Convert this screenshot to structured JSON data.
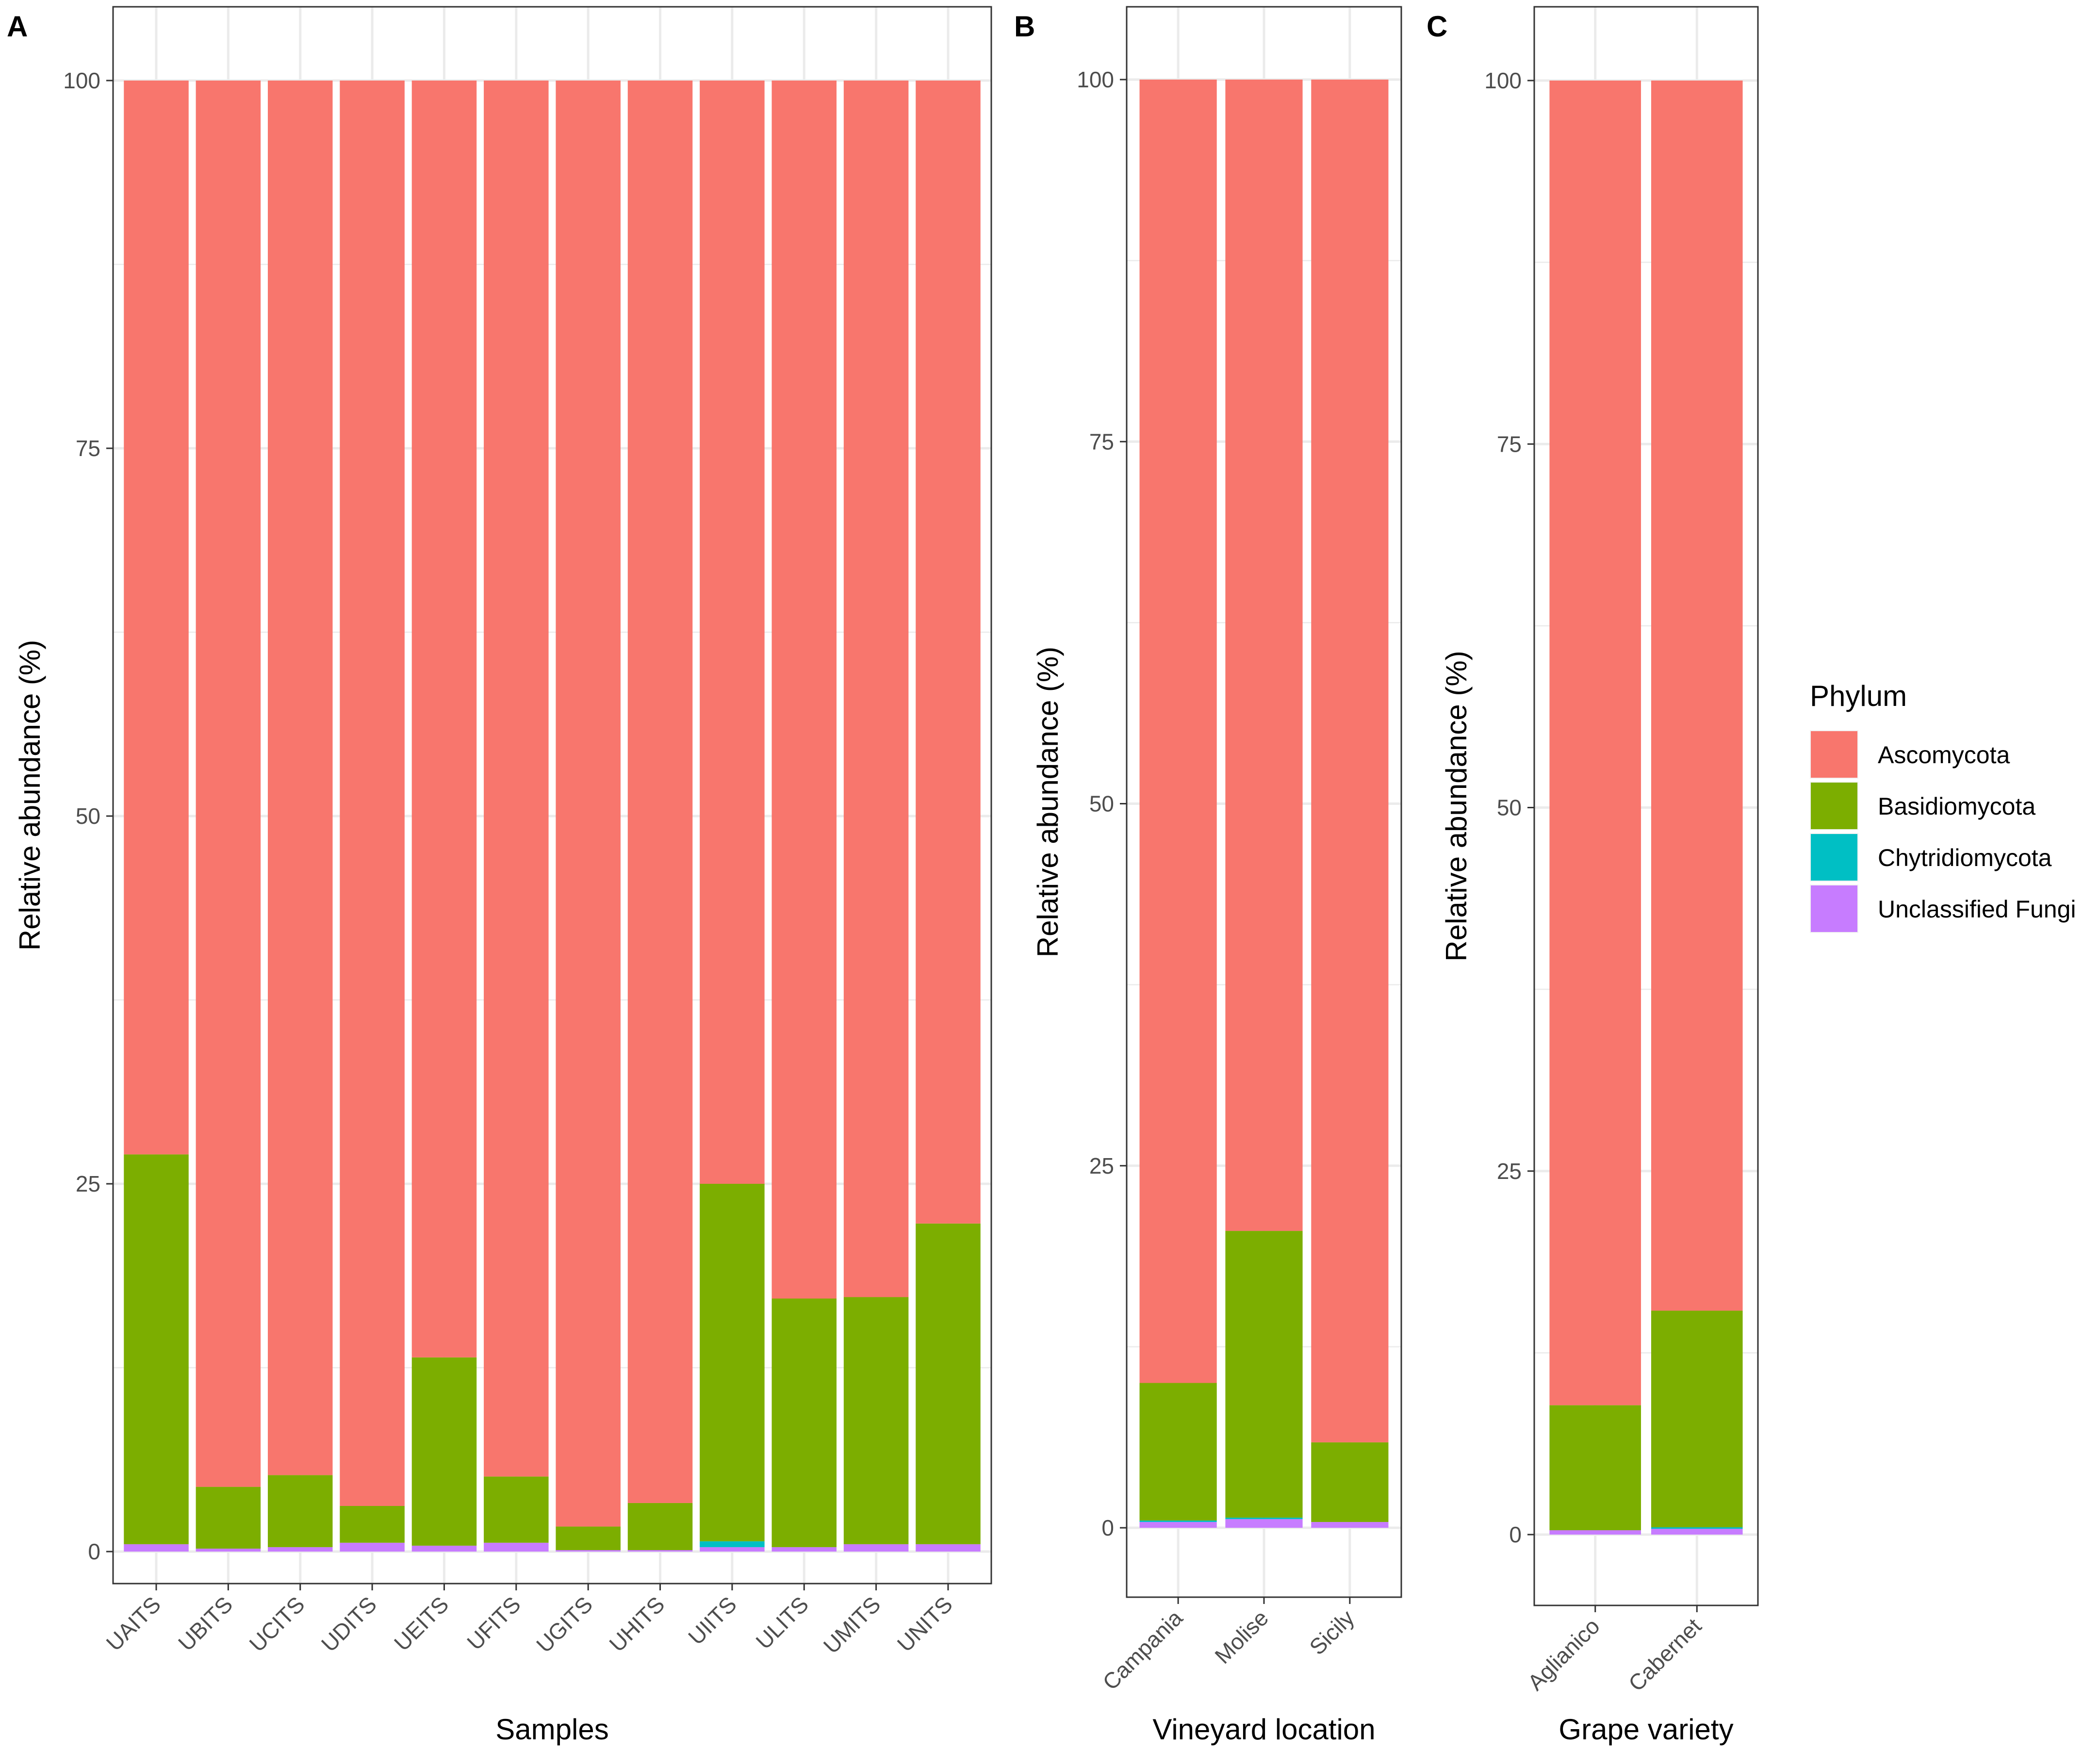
{
  "chart_data": [
    {
      "type": "bar",
      "stacked": true,
      "panel": "A",
      "xlabel": "Samples",
      "ylabel": "Relative abundance (%)",
      "ylim": [
        0,
        100
      ],
      "yticks": [
        "0",
        "25",
        "50",
        "75",
        "100"
      ],
      "grid": true,
      "categories": [
        "UAITS",
        "UBITS",
        "UCITS",
        "UDITS",
        "UEITS",
        "UFITS",
        "UGITS",
        "UHITS",
        "UIITS",
        "ULITS",
        "UMITS",
        "UNITS"
      ],
      "series": [
        {
          "name": "Unclassified Fungi",
          "values": [
            0.5,
            0.2,
            0.3,
            0.6,
            0.4,
            0.6,
            0.1,
            0.1,
            0.3,
            0.3,
            0.5,
            0.5
          ]
        },
        {
          "name": "Chytridiomycota",
          "values": [
            0,
            0,
            0,
            0,
            0,
            0,
            0,
            0,
            0.4,
            0,
            0,
            0
          ]
        },
        {
          "name": "Basidiomycota",
          "values": [
            26.5,
            4.2,
            4.9,
            2.5,
            12.8,
            4.5,
            1.6,
            3.2,
            24.3,
            16.9,
            16.8,
            21.8
          ]
        },
        {
          "name": "Ascomycota",
          "values": [
            73.0,
            95.6,
            94.8,
            96.9,
            86.8,
            94.9,
            98.3,
            96.7,
            75.0,
            82.8,
            82.7,
            77.7
          ]
        }
      ]
    },
    {
      "type": "bar",
      "stacked": true,
      "panel": "B",
      "xlabel": "Vineyard location",
      "ylabel": "Relative abundance (%)",
      "ylim": [
        0,
        100
      ],
      "yticks": [
        "0",
        "25",
        "50",
        "75",
        "100"
      ],
      "grid": true,
      "categories": [
        "Campania",
        "Molise",
        "Sicily"
      ],
      "series": [
        {
          "name": "Unclassified Fungi",
          "values": [
            0.4,
            0.6,
            0.4
          ]
        },
        {
          "name": "Chytridiomycota",
          "values": [
            0.1,
            0.1,
            0
          ]
        },
        {
          "name": "Basidiomycota",
          "values": [
            9.5,
            19.8,
            5.5
          ]
        },
        {
          "name": "Ascomycota",
          "values": [
            90.0,
            79.5,
            94.1
          ]
        }
      ]
    },
    {
      "type": "bar",
      "stacked": true,
      "panel": "C",
      "xlabel": "Grape variety",
      "ylabel": "Relative abundance (%)",
      "ylim": [
        0,
        100
      ],
      "yticks": [
        "0",
        "25",
        "50",
        "75",
        "100"
      ],
      "grid": true,
      "categories": [
        "Aglianico",
        "Cabernet"
      ],
      "series": [
        {
          "name": "Unclassified Fungi",
          "values": [
            0.3,
            0.4
          ]
        },
        {
          "name": "Chytridiomycota",
          "values": [
            0,
            0.1
          ]
        },
        {
          "name": "Basidiomycota",
          "values": [
            8.6,
            14.9
          ]
        },
        {
          "name": "Ascomycota",
          "values": [
            91.1,
            84.6
          ]
        }
      ]
    }
  ],
  "legend": {
    "title": "Phylum",
    "position": "right",
    "items": [
      {
        "name": "Ascomycota",
        "color": "#F8766D"
      },
      {
        "name": "Basidiomycota",
        "color": "#7CAE00"
      },
      {
        "name": "Chytridiomycota",
        "color": "#00BFC4"
      },
      {
        "name": "Unclassified Fungi",
        "color": "#C77CFF"
      }
    ]
  }
}
